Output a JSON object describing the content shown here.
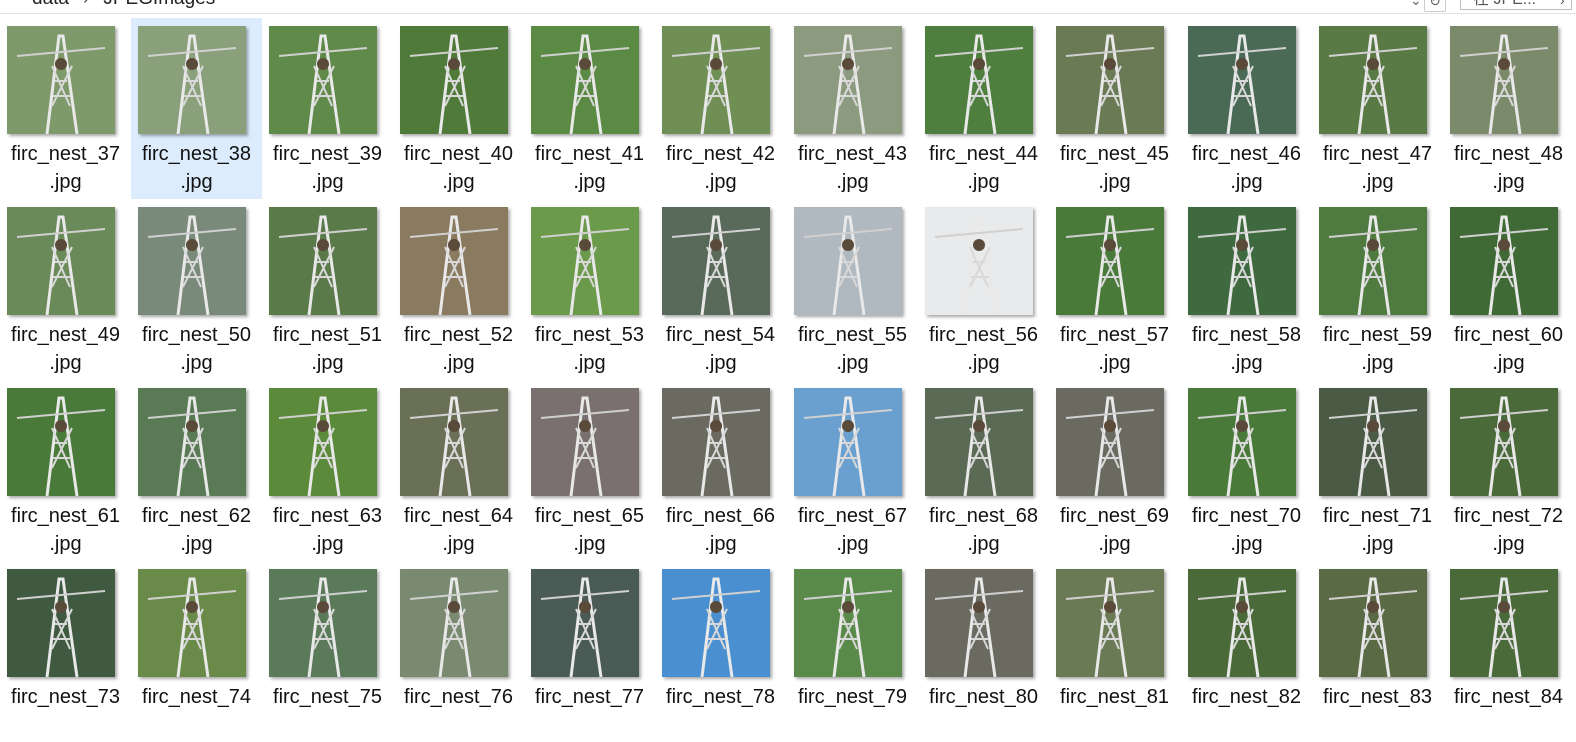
{
  "window": {
    "breadcrumb": [
      "data",
      "JPEGImages"
    ],
    "search_placeholder": "在 JPE..."
  },
  "selected_index": 1,
  "files": [
    {
      "name": "firc_nest_37",
      "ext": ".jpg"
    },
    {
      "name": "firc_nest_38",
      "ext": ".jpg"
    },
    {
      "name": "firc_nest_39",
      "ext": ".jpg"
    },
    {
      "name": "firc_nest_40",
      "ext": ".jpg"
    },
    {
      "name": "firc_nest_41",
      "ext": ".jpg"
    },
    {
      "name": "firc_nest_42",
      "ext": ".jpg"
    },
    {
      "name": "firc_nest_43",
      "ext": ".jpg"
    },
    {
      "name": "firc_nest_44",
      "ext": ".jpg"
    },
    {
      "name": "firc_nest_45",
      "ext": ".jpg"
    },
    {
      "name": "firc_nest_46",
      "ext": ".jpg"
    },
    {
      "name": "firc_nest_47",
      "ext": ".jpg"
    },
    {
      "name": "firc_nest_48",
      "ext": ".jpg"
    },
    {
      "name": "firc_nest_49",
      "ext": ".jpg"
    },
    {
      "name": "firc_nest_50",
      "ext": ".jpg"
    },
    {
      "name": "firc_nest_51",
      "ext": ".jpg"
    },
    {
      "name": "firc_nest_52",
      "ext": ".jpg"
    },
    {
      "name": "firc_nest_53",
      "ext": ".jpg"
    },
    {
      "name": "firc_nest_54",
      "ext": ".jpg"
    },
    {
      "name": "firc_nest_55",
      "ext": ".jpg"
    },
    {
      "name": "firc_nest_56",
      "ext": ".jpg"
    },
    {
      "name": "firc_nest_57",
      "ext": ".jpg"
    },
    {
      "name": "firc_nest_58",
      "ext": ".jpg"
    },
    {
      "name": "firc_nest_59",
      "ext": ".jpg"
    },
    {
      "name": "firc_nest_60",
      "ext": ".jpg"
    },
    {
      "name": "firc_nest_61",
      "ext": ".jpg"
    },
    {
      "name": "firc_nest_62",
      "ext": ".jpg"
    },
    {
      "name": "firc_nest_63",
      "ext": ".jpg"
    },
    {
      "name": "firc_nest_64",
      "ext": ".jpg"
    },
    {
      "name": "firc_nest_65",
      "ext": ".jpg"
    },
    {
      "name": "firc_nest_66",
      "ext": ".jpg"
    },
    {
      "name": "firc_nest_67",
      "ext": ".jpg"
    },
    {
      "name": "firc_nest_68",
      "ext": ".jpg"
    },
    {
      "name": "firc_nest_69",
      "ext": ".jpg"
    },
    {
      "name": "firc_nest_70",
      "ext": ".jpg"
    },
    {
      "name": "firc_nest_71",
      "ext": ".jpg"
    },
    {
      "name": "firc_nest_72",
      "ext": ".jpg"
    },
    {
      "name": "firc_nest_73",
      "ext": ""
    },
    {
      "name": "firc_nest_74",
      "ext": ""
    },
    {
      "name": "firc_nest_75",
      "ext": ""
    },
    {
      "name": "firc_nest_76",
      "ext": ""
    },
    {
      "name": "firc_nest_77",
      "ext": ""
    },
    {
      "name": "firc_nest_78",
      "ext": ""
    },
    {
      "name": "firc_nest_79",
      "ext": ""
    },
    {
      "name": "firc_nest_80",
      "ext": ""
    },
    {
      "name": "firc_nest_81",
      "ext": ""
    },
    {
      "name": "firc_nest_82",
      "ext": ""
    },
    {
      "name": "firc_nest_83",
      "ext": ""
    },
    {
      "name": "firc_nest_84",
      "ext": ""
    }
  ],
  "thumb_palettes": [
    "#7f9a6a",
    "#8aa07a",
    "#5f8a4a",
    "#4f7a3a",
    "#5a8a44",
    "#6f8f55",
    "#8c9a80",
    "#4f7f3f",
    "#6a7a55",
    "#4a6a55",
    "#5a7a45",
    "#7a8a6a",
    "#6a8a5a",
    "#7a8a7a",
    "#5a7a4a",
    "#8a7a60",
    "#6a9a4a",
    "#5a6a5a",
    "#b0b8c0",
    "#e8eaeb",
    "#4a7a3a",
    "#3f6a3f",
    "#4f7a40",
    "#3f6a35",
    "#4a7a3a",
    "#5a7a55",
    "#5a8a3a",
    "#6a7055",
    "#7a7070",
    "#6a6a60",
    "#6aa0d0",
    "#5a6a55",
    "#6a6a60",
    "#4a7a3a",
    "#4a5a45",
    "#4a6a3a",
    "#3f5a40",
    "#6a8a4a",
    "#5a7a5a",
    "#7a8a70",
    "#4a5a55",
    "#4a90d0",
    "#5a8a4a",
    "#6a6a60",
    "#6a7a55",
    "#4a6a3a",
    "#5a6a45",
    "#4a6a3a"
  ]
}
